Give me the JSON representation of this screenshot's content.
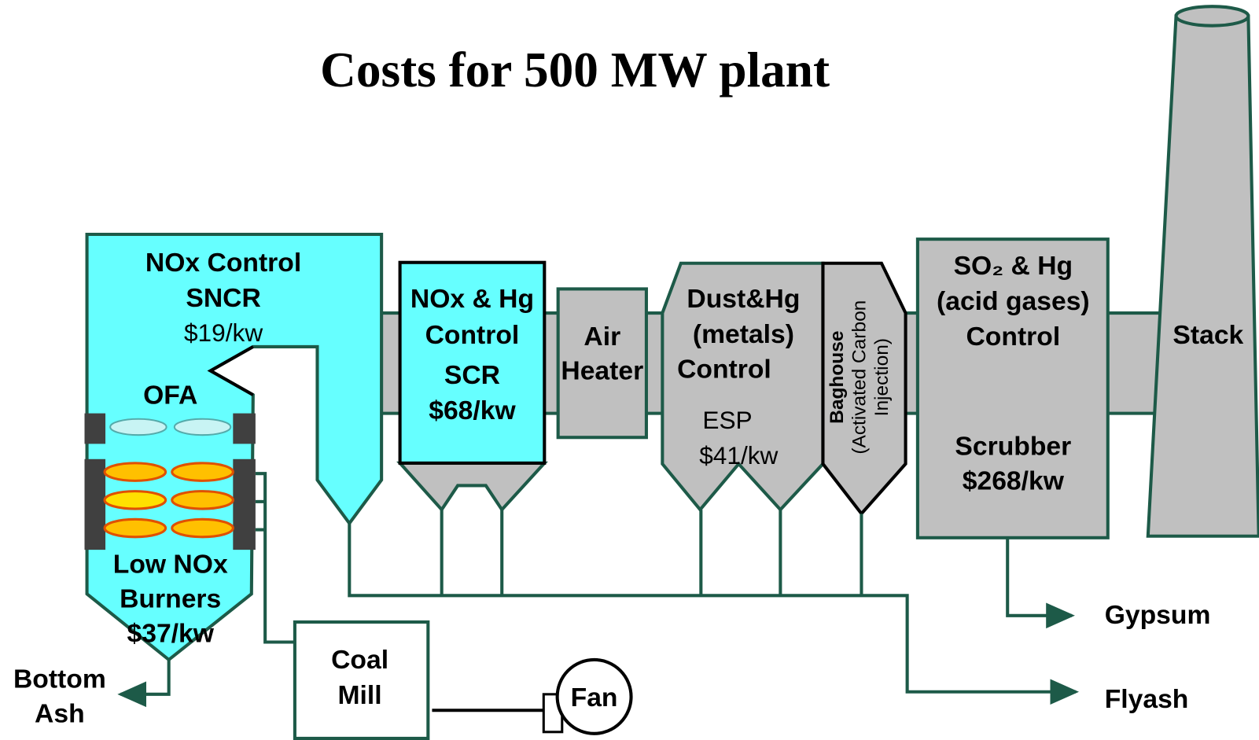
{
  "title": "Costs for 500 MW plant",
  "boiler": {
    "lines": [
      "NOx Control",
      "SNCR"
    ],
    "cost": "$19/kw",
    "ofa": "OFA",
    "burners": [
      "Low NOx",
      "Burners"
    ],
    "burner_cost": "$37/kw"
  },
  "scr": {
    "lines": [
      "NOx & Hg",
      "Control",
      "SCR"
    ],
    "cost": "$68/kw"
  },
  "air_heater": [
    "Air",
    "Heater"
  ],
  "esp": {
    "lines": [
      "Dust&Hg",
      "(metals)",
      "Control"
    ],
    "type": "ESP",
    "cost": "$41/kw"
  },
  "baghouse": [
    "Baghouse",
    "(Activated Carbon",
    "Injection)"
  ],
  "scrubber": {
    "lines": [
      "SO₂ & Hg",
      "(acid gases)",
      "Control"
    ],
    "type": "Scrubber",
    "cost": "$268/kw"
  },
  "stack": "Stack",
  "coal_mill": [
    "Coal",
    "Mill"
  ],
  "fan": "Fan",
  "outputs": {
    "bottom_ash": [
      "Bottom",
      "Ash"
    ],
    "gypsum": "Gypsum",
    "flyash": "Flyash"
  }
}
